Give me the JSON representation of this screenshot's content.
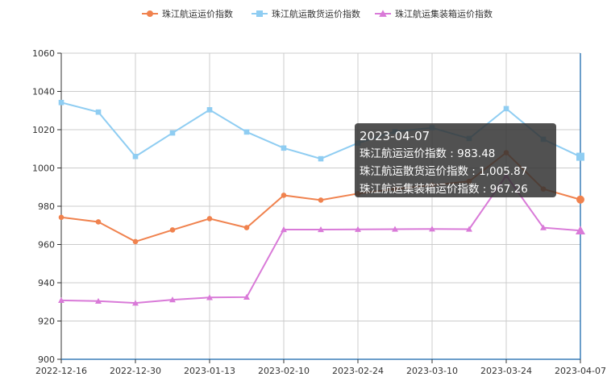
{
  "chart_data": {
    "type": "line",
    "x": [
      "2022-12-16",
      "2022-12-23",
      "2022-12-30",
      "2023-01-06",
      "2023-01-13",
      "2023-01-20",
      "2023-02-10",
      "2023-02-17",
      "2023-02-24",
      "2023-03-03",
      "2023-03-10",
      "2023-03-17",
      "2023-03-24",
      "2023-03-31",
      "2023-04-07"
    ],
    "x_tick_labels": [
      "2022-12-16",
      "2022-12-30",
      "2023-01-13",
      "2023-02-10",
      "2023-02-24",
      "2023-03-10",
      "2023-03-24",
      "2023-04-07"
    ],
    "ylim": [
      900,
      1060
    ],
    "y_ticks": [
      900,
      920,
      940,
      960,
      980,
      1000,
      1020,
      1040,
      1060
    ],
    "grid": true,
    "legend_position": "top-center",
    "series": [
      {
        "name": "珠江航运运价指数",
        "color": "#f0824e",
        "marker": "circle",
        "values": [
          974.2,
          971.8,
          961.5,
          967.6,
          973.5,
          968.8,
          985.7,
          983.2,
          986.6,
          989.0,
          991.0,
          993.0,
          1008.0,
          989.0,
          983.48
        ]
      },
      {
        "name": "珠江航运散货运价指数",
        "color": "#8fcdf2",
        "marker": "square",
        "values": [
          1034.2,
          1029.2,
          1006.0,
          1018.3,
          1030.4,
          1018.8,
          1010.4,
          1004.8,
          1013.0,
          1019.0,
          1021.0,
          1015.4,
          1031.0,
          1015.0,
          1005.87
        ]
      },
      {
        "name": "珠江航运集装箱运价指数",
        "color": "#d97ad8",
        "marker": "triangle",
        "values": [
          930.8,
          930.4,
          929.4,
          931.1,
          932.3,
          932.5,
          967.8,
          967.8,
          967.9,
          968.0,
          968.1,
          968.0,
          996.0,
          968.8,
          967.26
        ]
      }
    ]
  },
  "tooltip": {
    "date": "2023-04-07",
    "rows": [
      "珠江航运运价指数 : 983.48",
      "珠江航运散货运价指数 : 1,005.87",
      "珠江航运集装箱运价指数 : 967.26"
    ]
  }
}
